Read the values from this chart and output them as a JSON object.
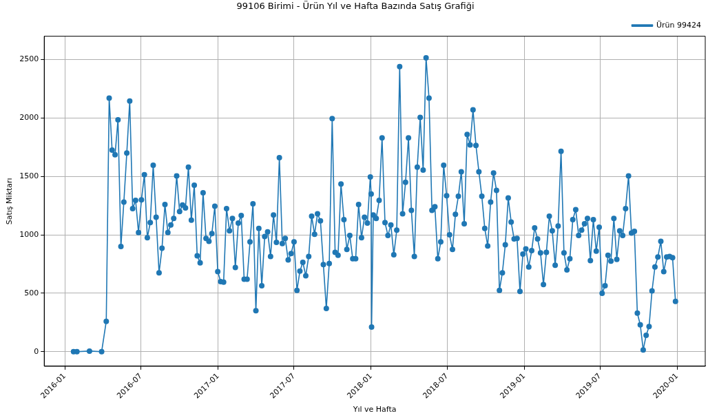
{
  "chart_data": {
    "type": "line",
    "title": "99106 Birimi - Ürün Yıl ve Hafta Bazında Satış Grafiği",
    "xlabel": "Yıl ve Hafta",
    "ylabel": "Satış Miktarı",
    "x": [
      "2016-01-22",
      "2016-01-30",
      "2016-02-29",
      "2016-03-29",
      "2016-04-09",
      "2016-04-16",
      "2016-04-23",
      "2016-04-30",
      "2016-05-07",
      "2016-05-14",
      "2016-05-21",
      "2016-05-28",
      "2016-06-04",
      "2016-06-11",
      "2016-06-18",
      "2016-06-25",
      "2016-07-02",
      "2016-07-09",
      "2016-07-16",
      "2016-07-23",
      "2016-07-30",
      "2016-08-06",
      "2016-08-13",
      "2016-08-20",
      "2016-08-27",
      "2016-09-03",
      "2016-09-10",
      "2016-09-17",
      "2016-09-24",
      "2016-10-01",
      "2016-10-08",
      "2016-10-15",
      "2016-10-22",
      "2016-10-29",
      "2016-11-05",
      "2016-11-12",
      "2016-11-19",
      "2016-11-26",
      "2016-12-03",
      "2016-12-10",
      "2016-12-17",
      "2016-12-24",
      "2016-12-31",
      "2017-01-07",
      "2017-01-14",
      "2017-01-21",
      "2017-01-28",
      "2017-02-04",
      "2017-02-11",
      "2017-02-18",
      "2017-02-25",
      "2017-03-04",
      "2017-03-11",
      "2017-03-18",
      "2017-03-25",
      "2017-04-01",
      "2017-04-08",
      "2017-04-15",
      "2017-04-22",
      "2017-04-29",
      "2017-05-06",
      "2017-05-13",
      "2017-05-20",
      "2017-05-27",
      "2017-06-03",
      "2017-06-10",
      "2017-06-17",
      "2017-06-24",
      "2017-07-01",
      "2017-07-08",
      "2017-07-15",
      "2017-07-22",
      "2017-07-29",
      "2017-08-05",
      "2017-08-12",
      "2017-08-19",
      "2017-08-26",
      "2017-09-02",
      "2017-09-09",
      "2017-09-16",
      "2017-09-23",
      "2017-09-30",
      "2017-10-07",
      "2017-10-14",
      "2017-10-21",
      "2017-10-28",
      "2017-11-04",
      "2017-11-11",
      "2017-11-18",
      "2017-11-25",
      "2017-12-02",
      "2017-12-09",
      "2017-12-16",
      "2017-12-23",
      "2017-12-30",
      "2018-01-01",
      "2018-01-02",
      "2018-01-06",
      "2018-01-13",
      "2018-01-20",
      "2018-01-27",
      "2018-02-03",
      "2018-02-10",
      "2018-02-17",
      "2018-02-24",
      "2018-03-03",
      "2018-03-10",
      "2018-03-17",
      "2018-03-24",
      "2018-03-31",
      "2018-04-07",
      "2018-04-14",
      "2018-04-21",
      "2018-04-28",
      "2018-05-05",
      "2018-05-12",
      "2018-05-19",
      "2018-05-26",
      "2018-06-02",
      "2018-06-09",
      "2018-06-16",
      "2018-06-23",
      "2018-06-30",
      "2018-07-07",
      "2018-07-14",
      "2018-07-21",
      "2018-07-28",
      "2018-08-04",
      "2018-08-11",
      "2018-08-18",
      "2018-08-25",
      "2018-09-01",
      "2018-09-08",
      "2018-09-15",
      "2018-09-22",
      "2018-09-29",
      "2018-10-06",
      "2018-10-13",
      "2018-10-20",
      "2018-10-27",
      "2018-11-03",
      "2018-11-10",
      "2018-11-17",
      "2018-11-24",
      "2018-12-01",
      "2018-12-08",
      "2018-12-15",
      "2018-12-22",
      "2018-12-29",
      "2019-01-05",
      "2019-01-12",
      "2019-01-19",
      "2019-01-26",
      "2019-02-02",
      "2019-02-09",
      "2019-02-16",
      "2019-02-23",
      "2019-03-02",
      "2019-03-09",
      "2019-03-16",
      "2019-03-23",
      "2019-03-30",
      "2019-04-06",
      "2019-04-13",
      "2019-04-20",
      "2019-04-27",
      "2019-05-04",
      "2019-05-11",
      "2019-05-18",
      "2019-05-25",
      "2019-06-01",
      "2019-06-08",
      "2019-06-15",
      "2019-06-22",
      "2019-06-29",
      "2019-07-06",
      "2019-07-13",
      "2019-07-20",
      "2019-07-27",
      "2019-08-03",
      "2019-08-10",
      "2019-08-17",
      "2019-08-24",
      "2019-08-31",
      "2019-09-07",
      "2019-09-14",
      "2019-09-21",
      "2019-09-28",
      "2019-10-05",
      "2019-10-12",
      "2019-10-19",
      "2019-10-26",
      "2019-11-02",
      "2019-11-09",
      "2019-11-16",
      "2019-11-23",
      "2019-11-30",
      "2019-12-07",
      "2019-12-14",
      "2019-12-21",
      "2019-12-28"
    ],
    "series": [
      {
        "name": "Ürün 99424",
        "color": "#1f77b4",
        "values": [
          0,
          0,
          5,
          0,
          260,
          2170,
          1725,
          1685,
          1985,
          900,
          1280,
          1700,
          2145,
          1225,
          1295,
          1020,
          1300,
          1515,
          975,
          1105,
          1595,
          1150,
          675,
          885,
          1260,
          1020,
          1085,
          1140,
          1505,
          1200,
          1255,
          1230,
          1580,
          1125,
          1425,
          820,
          760,
          1360,
          970,
          945,
          1010,
          1245,
          685,
          600,
          595,
          1225,
          1035,
          1140,
          720,
          1100,
          1165,
          620,
          620,
          940,
          1265,
          350,
          1055,
          565,
          985,
          1025,
          815,
          1170,
          935,
          1660,
          925,
          970,
          785,
          840,
          940,
          525,
          690,
          765,
          650,
          815,
          1160,
          1005,
          1180,
          1120,
          745,
          370,
          755,
          1995,
          850,
          825,
          1435,
          1130,
          875,
          995,
          795,
          795,
          1260,
          975,
          1150,
          1100,
          1495,
          1350,
          210,
          1170,
          1140,
          1295,
          1830,
          1105,
          995,
          1085,
          830,
          1040,
          2440,
          1180,
          1450,
          1830,
          1210,
          815,
          1580,
          2005,
          1555,
          2515,
          2170,
          1210,
          1240,
          795,
          940,
          1595,
          1335,
          1000,
          875,
          1175,
          1330,
          1540,
          1095,
          1860,
          1770,
          2070,
          1765,
          1540,
          1330,
          1055,
          905,
          1280,
          1530,
          1380,
          525,
          675,
          915,
          1315,
          1110,
          965,
          970,
          515,
          835,
          880,
          725,
          865,
          1060,
          965,
          845,
          575,
          850,
          1160,
          1035,
          740,
          1075,
          1715,
          845,
          700,
          795,
          1130,
          1215,
          995,
          1040,
          1095,
          1140,
          780,
          1130,
          860,
          1065,
          500,
          565,
          825,
          775,
          1140,
          790,
          1035,
          995,
          1225,
          1505,
          1015,
          1030,
          330,
          230,
          15,
          140,
          215,
          520,
          725,
          810,
          945,
          685,
          810,
          815,
          805,
          430
        ]
      }
    ],
    "xlim": [
      "2015-11-13",
      "2020-03-08"
    ],
    "xticks": [
      "2016-01",
      "2016-07",
      "2017-01",
      "2017-07",
      "2018-01",
      "2018-07",
      "2019-01",
      "2019-07",
      "2020-01"
    ],
    "ylim": [
      -125,
      2700
    ],
    "yticks": [
      0,
      500,
      1000,
      1500,
      2000,
      2500
    ],
    "grid": true,
    "legend": "top right",
    "marker": "circle",
    "line_style": "solid"
  }
}
